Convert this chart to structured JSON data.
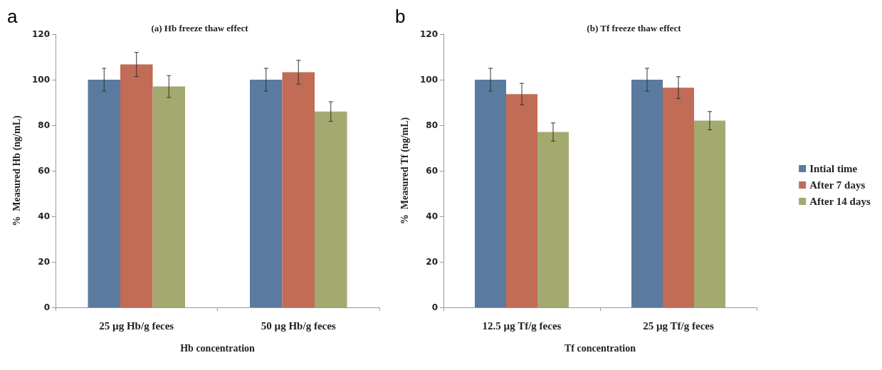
{
  "chart_data": [
    {
      "type": "bar",
      "title": "(a) Hb freeze thaw effect",
      "xlabel": "Hb concentration",
      "ylabel": "%  Measured Hb (ng/mL)",
      "annotations": [
        "a"
      ],
      "categories": [
        "25 µg Hb/g feces",
        "50 µg Hb/g feces"
      ],
      "ylim": [
        0,
        120
      ],
      "yticks": [
        0,
        20,
        40,
        60,
        80,
        100,
        120
      ],
      "legend": false,
      "series": [
        {
          "color": "#5b7aa0",
          "values": [
            100,
            100
          ],
          "errors": [
            5,
            5
          ]
        },
        {
          "color": "#c26b55",
          "values": [
            106.7,
            103.3
          ],
          "errors": [
            5.3,
            5.2
          ]
        },
        {
          "color": "#a4a96f",
          "values": [
            97,
            86
          ],
          "errors": [
            4.8,
            4.3
          ]
        }
      ]
    },
    {
      "type": "bar",
      "title": "(b) Tf freeze thaw effect",
      "xlabel": "Tf concentration",
      "ylabel": "%  Measured Tf (ng/mL)",
      "annotations": [
        "b"
      ],
      "categories": [
        "12.5 µg Tf/g feces",
        "25 µg Tf/g feces"
      ],
      "ylim": [
        0,
        120
      ],
      "yticks": [
        0,
        20,
        40,
        60,
        80,
        100,
        120
      ],
      "legend": "right",
      "series": [
        {
          "name": "Intial time",
          "color": "#5b7aa0",
          "values": [
            100,
            100
          ],
          "errors": [
            5,
            5
          ]
        },
        {
          "name": "After 7 days",
          "color": "#c26b55",
          "values": [
            93.7,
            96.5
          ],
          "errors": [
            4.7,
            4.8
          ]
        },
        {
          "name": "After 14 days",
          "color": "#a4a96f",
          "values": [
            77,
            82
          ],
          "errors": [
            4,
            4
          ]
        }
      ]
    }
  ]
}
